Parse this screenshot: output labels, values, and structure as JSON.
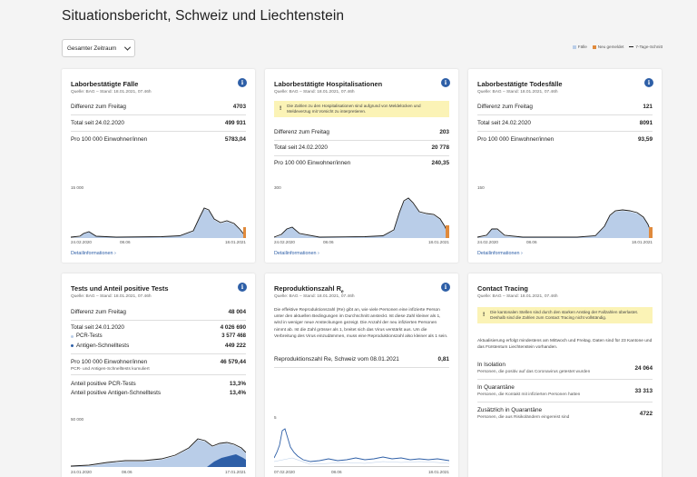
{
  "page": {
    "title": "Situationsbericht, Schweiz und Liechtenstein"
  },
  "period_select": {
    "value": "Gesamter Zeitraum"
  },
  "legend": [
    {
      "label": "Fälle",
      "color": "#b9cde8"
    },
    {
      "label": "Neu gemeldet",
      "color": "#e08a3c"
    },
    {
      "label": "7-Tage-Schnitt",
      "color": "#1a1a1a"
    }
  ],
  "source": "Quelle: BAG – Stand: 18.01.2021, 07.46h",
  "detail_label": "Detailinformationen",
  "cases": {
    "title": "Laborbestätigte Fälle",
    "rows": [
      {
        "label": "Differenz zum Freitag",
        "value": "4703"
      },
      {
        "label": "Total seit 24.02.2020",
        "value": "499 931"
      },
      {
        "label": "Pro 100 000 Einwohner/innen",
        "value": "5783,04"
      }
    ],
    "y_tick": "15 000",
    "x_ticks": [
      "24.02.2020",
      "08.06",
      "18.01.2021"
    ]
  },
  "hosp": {
    "title": "Laborbestätigte Hospitalisationen",
    "warning": "Die Zahlen zu den Hospitalisationen sind aufgrund von Meldelücken und Meldeverzug mit Vorsicht zu interpretieren.",
    "rows": [
      {
        "label": "Differenz zum Freitag",
        "value": "203"
      },
      {
        "label": "Total seit 24.02.2020",
        "value": "20 778"
      },
      {
        "label": "Pro 100 000 Einwohner/innen",
        "value": "240,35"
      }
    ],
    "y_tick": "300",
    "x_ticks": [
      "24.02.2020",
      "08.06",
      "18.01.2021"
    ]
  },
  "deaths": {
    "title": "Laborbestätigte Todesfälle",
    "rows": [
      {
        "label": "Differenz zum Freitag",
        "value": "121"
      },
      {
        "label": "Total seit 24.02.2020",
        "value": "8091"
      },
      {
        "label": "Pro 100 000 Einwohner/innen",
        "value": "93,59"
      }
    ],
    "y_tick": "150",
    "x_ticks": [
      "24.02.2020",
      "08.06",
      "18.01.2021"
    ]
  },
  "tests": {
    "title": "Tests und Anteil positive Tests",
    "diff_label": "Differenz zum Freitag",
    "diff_value": "48 004",
    "total_label": "Total seit 24.01.2020",
    "total_value": "4 026 690",
    "pcr_label": "PCR-Tests",
    "pcr_value": "3 577 468",
    "antigen_label": "Antigen-Schnelltests",
    "antigen_value": "449 222",
    "per100k_label": "Pro 100 000 Einwohner/innen",
    "per100k_value": "46 579,44",
    "per100k_note": "PCR- und Antigen-Schnelltests kumuliert",
    "pos_pcr_label": "Anteil positive PCR-Tests",
    "pos_pcr_value": "13,3%",
    "pos_ag_label": "Anteil positive Antigen-Schnelltests",
    "pos_ag_value": "13,4%",
    "y_tick": "50 000",
    "x_ticks": [
      "24.01.2020",
      "08.06",
      "17.01.2021"
    ],
    "colors": {
      "pcr": "#b9cde8",
      "antigen": "#2e5fa7"
    }
  },
  "re": {
    "title": "Reproduktionszahl R",
    "title_sub": "e",
    "paragraph": "Die effektive Reproduktionszahl (Re) gibt an, wie viele Personen eine infizierte Person unter den aktuellen Bedingungen im Durchschnitt ansteckt. Ist diese Zahl kleiner als 1, wird in weniger neue Ansteckungen gezeigt. Die Anzahl der neu infizierten Personen nimmt ab. Ist die Zahl grösser als 1, breitet sich das Virus verstärkt aus. Um die Verbreitung des Virus einzudämmen, muss eine Reproduktionszahl also kleiner als 1 sein.",
    "row_label": "Reproduktionszahl Re, Schweiz vom 08.01.2021",
    "row_value": "0,81",
    "y_tick": "5",
    "x_ticks": [
      "07.02.2020",
      "08.06",
      "18.01.2021"
    ]
  },
  "contact": {
    "title": "Contact Tracing",
    "warning": "Die kantonalen Stellen sind durch den starken Anstieg der Fallzahlen überlastet. Deshalb sind die Zahlen zum Contact Tracing nicht vollständig.",
    "update_note": "Aktualisierung erfolgt mindestens am Mittwoch und Freitag. Daten sind für 23 Kantone und das Fürstentum Liechtenstein vorhanden.",
    "items": [
      {
        "label": "In Isolation",
        "sub": "Personen, die positiv auf das Coronavirus getestet wurden",
        "value": "24 064"
      },
      {
        "label": "In Quarantäne",
        "sub": "Personen, die Kontakt mit infizierten Personen hatten",
        "value": "33 313"
      },
      {
        "label": "Zusätzlich in Quarantäne",
        "sub": "Personen, die aus Risikoländern eingereist sind",
        "value": "4722"
      }
    ]
  }
}
